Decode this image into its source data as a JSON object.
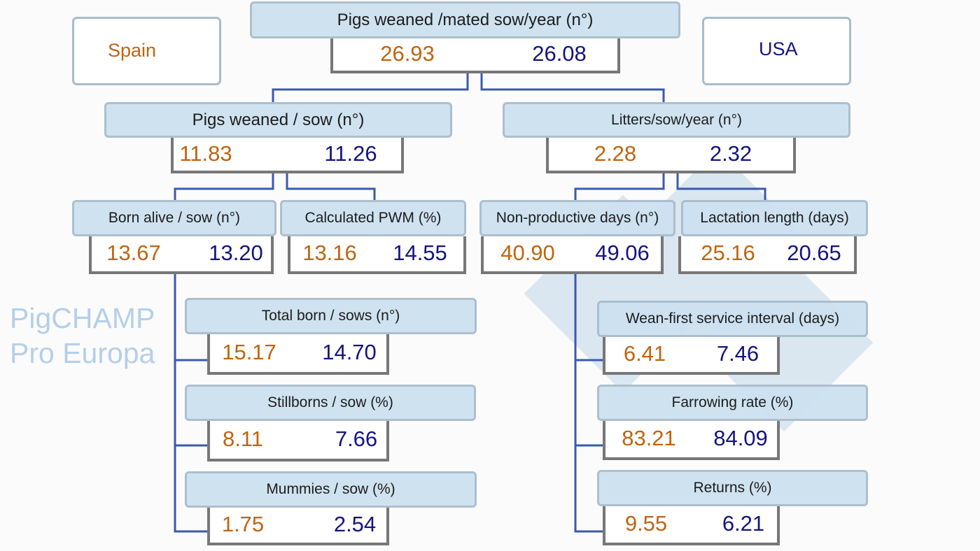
{
  "legend": {
    "spain": "Spain",
    "usa": "USA"
  },
  "watermark": "PigCHAMP Pro Europa",
  "colors": {
    "spain": "#c0640f",
    "usa": "#14147e",
    "connector": "#3a5aad",
    "label_bg": "#cde1f0"
  },
  "nodes": [
    {
      "id": "pigs-weaned-mated-sow-year",
      "label": "Pigs weaned /mated sow/year (n°)",
      "spain": "26.93",
      "usa": "26.08"
    },
    {
      "id": "pigs-weaned-sow",
      "label": "Pigs weaned / sow (n°)",
      "spain": "11.83",
      "usa": "11.26"
    },
    {
      "id": "litters-sow-year",
      "label": "Litters/sow/year (n°)",
      "spain": "2.28",
      "usa": "2.32"
    },
    {
      "id": "born-alive-sow",
      "label": "Born alive / sow (n°)",
      "spain": "13.67",
      "usa": "13.20"
    },
    {
      "id": "calculated-pwm",
      "label": "Calculated PWM (%)",
      "spain": "13.16",
      "usa": "14.55"
    },
    {
      "id": "non-productive-days",
      "label": "Non-productive days (n°)",
      "spain": "40.90",
      "usa": "49.06"
    },
    {
      "id": "lactation-length",
      "label": "Lactation length (days)",
      "spain": "25.16",
      "usa": "20.65"
    },
    {
      "id": "total-born-sows",
      "label": "Total born / sows (n°)",
      "spain": "15.17",
      "usa": "14.70"
    },
    {
      "id": "stillborns-sow",
      "label": "Stillborns / sow (%)",
      "spain": "8.11",
      "usa": "7.66"
    },
    {
      "id": "mummies-sow",
      "label": "Mummies / sow (%)",
      "spain": "1.75",
      "usa": "2.54"
    },
    {
      "id": "wean-first-service-interval",
      "label": "Wean-first service interval (days)",
      "spain": "6.41",
      "usa": "7.46"
    },
    {
      "id": "farrowing-rate",
      "label": "Farrowing rate (%)",
      "spain": "83.21",
      "usa": "84.09"
    },
    {
      "id": "returns",
      "label": "Returns (%)",
      "spain": "9.55",
      "usa": "6.21"
    }
  ]
}
